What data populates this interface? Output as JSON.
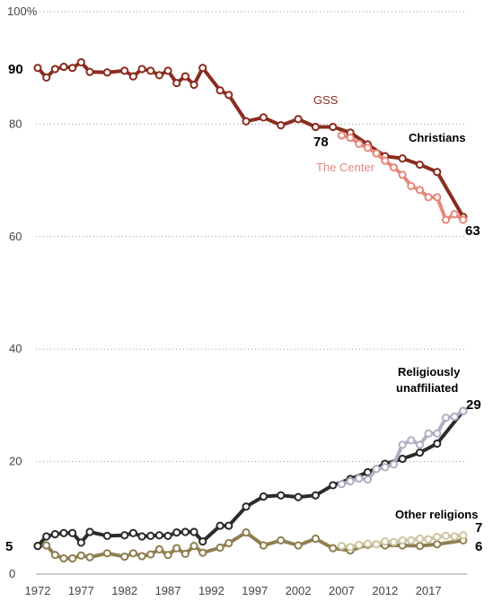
{
  "chart_data": {
    "type": "line",
    "ylim": [
      0,
      100
    ],
    "xlim": [
      1972,
      2021
    ],
    "y_ticks": [
      "0",
      "20",
      "40",
      "60",
      "80",
      "100"
    ],
    "y_top_unit": "%",
    "x_ticks": [
      "1972",
      "1977",
      "1982",
      "1987",
      "1992",
      "1997",
      "2002",
      "2007",
      "2012",
      "2017"
    ],
    "grid": "horizontal dotted",
    "colors": {
      "gss_christian": "#8b2c1f",
      "center_christian": "#e6877c",
      "gss_unaffiliated": "#2b2b2b",
      "center_unaffiliated": "#b3adc2",
      "gss_other": "#8f7f4f",
      "center_other": "#cdc6a2"
    },
    "annotations": {
      "gss": "GSS",
      "center": "The Center",
      "christians": "Christians",
      "unaffiliated_1": "Religiously",
      "unaffiliated_2": "unaffiliated",
      "other": "Other religions",
      "christ_start": "90",
      "christ_2007": "78",
      "christ_end": "63",
      "unaff_start": "5",
      "unaff_end": "29",
      "other_end_7": "7",
      "other_end_6": "6"
    },
    "series": [
      {
        "key": "gss_christian",
        "x": [
          1972,
          1973,
          1974,
          1975,
          1976,
          1977,
          1978,
          1980,
          1982,
          1983,
          1984,
          1985,
          1986,
          1987,
          1988,
          1989,
          1990,
          1991,
          1993,
          1994,
          1996,
          1998,
          2000,
          2002,
          2004,
          2006,
          2008,
          2010,
          2012,
          2014,
          2016,
          2018,
          2021
        ],
        "y": [
          90,
          88.3,
          89.8,
          90.2,
          90,
          91,
          89.3,
          89.2,
          89.5,
          88.5,
          89.8,
          89.5,
          88.7,
          89.5,
          87.3,
          88.5,
          87,
          90,
          86,
          85.2,
          80.5,
          81.2,
          79.8,
          80.9,
          79.5,
          79.5,
          78.5,
          76.4,
          74.3,
          73.9,
          72.8,
          71.5,
          63.5
        ]
      },
      {
        "key": "center_christian",
        "x": [
          2007,
          2008,
          2009,
          2010,
          2011,
          2012,
          2013,
          2014,
          2015,
          2016,
          2017,
          2018,
          2019,
          2020,
          2021
        ],
        "y": [
          78,
          77.6,
          76.5,
          75.8,
          74.8,
          73.5,
          72.3,
          71,
          69,
          68.3,
          67,
          67,
          63,
          64,
          63
        ]
      },
      {
        "key": "gss_unaffiliated",
        "x": [
          1972,
          1973,
          1974,
          1975,
          1976,
          1977,
          1978,
          1980,
          1982,
          1983,
          1984,
          1985,
          1986,
          1987,
          1988,
          1989,
          1990,
          1991,
          1993,
          1994,
          1996,
          1998,
          2000,
          2002,
          2004,
          2006,
          2008,
          2010,
          2012,
          2014,
          2016,
          2018,
          2021
        ],
        "y": [
          5,
          6.7,
          7.1,
          7.3,
          7.3,
          5.6,
          7.5,
          6.8,
          6.9,
          7.3,
          6.7,
          6.8,
          6.9,
          6.8,
          7.4,
          7.5,
          7.5,
          5.8,
          8.6,
          8.6,
          12,
          13.8,
          14,
          13.7,
          14,
          15.8,
          16.9,
          18.1,
          19.6,
          20.5,
          21.6,
          23.2,
          29
        ]
      },
      {
        "key": "center_unaffiliated",
        "x": [
          2007,
          2008,
          2009,
          2010,
          2011,
          2012,
          2013,
          2014,
          2015,
          2016,
          2017,
          2018,
          2019,
          2020,
          2021
        ],
        "y": [
          16,
          16.5,
          17,
          16.8,
          18.7,
          19,
          19.5,
          23,
          23.8,
          23,
          25,
          25,
          27.8,
          28,
          29
        ]
      },
      {
        "key": "gss_other",
        "x": [
          1972,
          1973,
          1974,
          1975,
          1976,
          1977,
          1978,
          1980,
          1982,
          1983,
          1984,
          1985,
          1986,
          1987,
          1988,
          1989,
          1990,
          1991,
          1993,
          1994,
          1996,
          1998,
          2000,
          2002,
          2004,
          2006,
          2008,
          2010,
          2012,
          2014,
          2016,
          2018,
          2021
        ],
        "y": [
          5,
          5.1,
          3.4,
          2.8,
          2.8,
          3.3,
          3,
          3.7,
          3.1,
          3.7,
          3.2,
          3.5,
          4.4,
          3.4,
          4.6,
          3.6,
          5,
          3.8,
          4.7,
          5.5,
          7.4,
          5.1,
          6,
          5.1,
          6.3,
          4.6,
          4.2,
          5.2,
          5.1,
          5.1,
          5,
          5.3,
          6
        ]
      },
      {
        "key": "center_other",
        "x": [
          2007,
          2008,
          2009,
          2010,
          2011,
          2012,
          2013,
          2014,
          2015,
          2016,
          2017,
          2018,
          2019,
          2020,
          2021
        ],
        "y": [
          5,
          4.8,
          5.2,
          5.4,
          5.3,
          5.8,
          5.7,
          6,
          6,
          6.3,
          6.2,
          6.6,
          6.8,
          6.7,
          6.9
        ]
      }
    ]
  }
}
